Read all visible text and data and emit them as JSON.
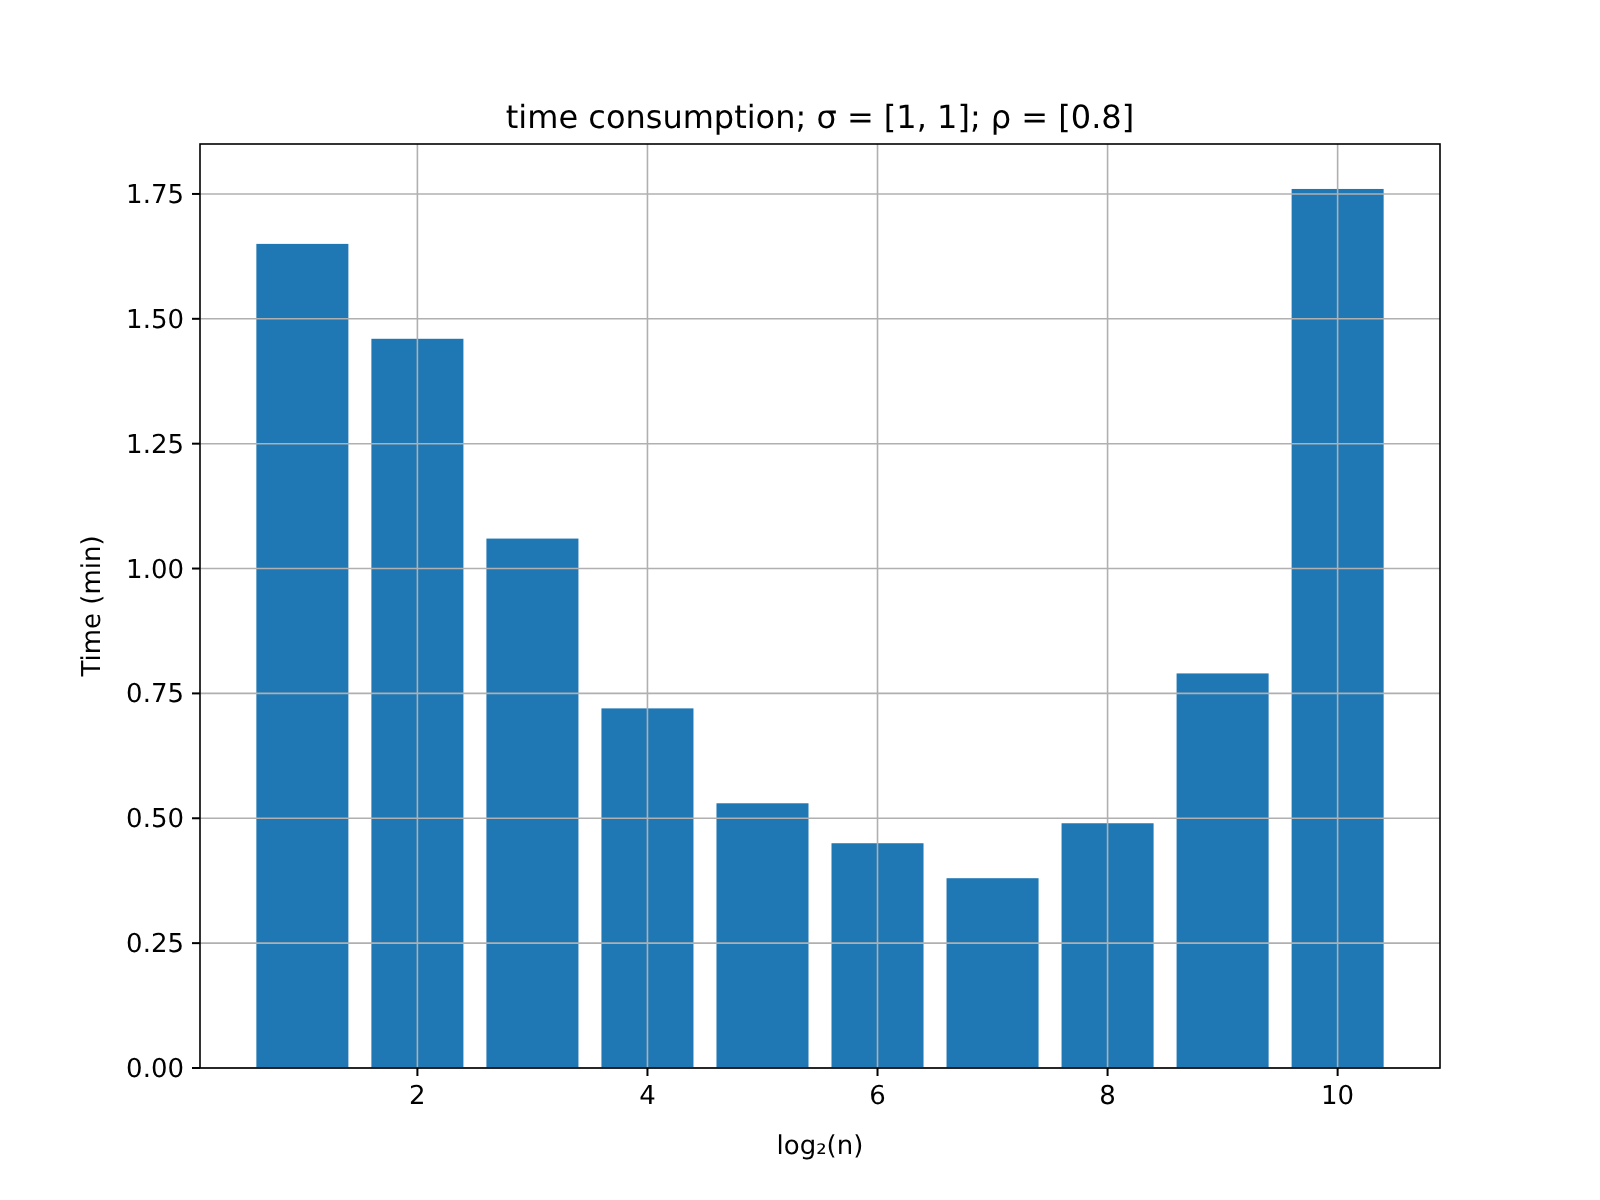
{
  "chart_data": {
    "type": "bar",
    "title": "time consumption;  σ = [1, 1];  ρ = [0.8]",
    "xlabel": "log₂(n)",
    "ylabel": "Time (min)",
    "x": [
      1,
      2,
      3,
      4,
      5,
      6,
      7,
      8,
      9,
      10
    ],
    "values": [
      1.65,
      1.46,
      1.06,
      0.72,
      0.53,
      0.45,
      0.38,
      0.49,
      0.79,
      1.76
    ],
    "color": "#1f77b4",
    "xlim": [
      0.11,
      10.89
    ],
    "xticks": [
      2,
      4,
      6,
      8,
      10
    ],
    "ylim": [
      0,
      1.85
    ],
    "yticks": [
      {
        "value": 0,
        "label": "0.00"
      },
      {
        "value": 0.25,
        "label": "0.25"
      },
      {
        "value": 0.5,
        "label": "0.50"
      },
      {
        "value": 0.75,
        "label": "0.75"
      },
      {
        "value": 1,
        "label": "1.00"
      },
      {
        "value": 1.25,
        "label": "1.25"
      },
      {
        "value": 1.5,
        "label": "1.50"
      },
      {
        "value": 1.75,
        "label": "1.75"
      }
    ],
    "grid": true
  }
}
